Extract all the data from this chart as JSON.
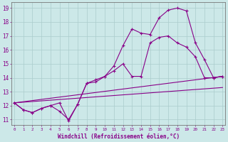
{
  "xlabel": "Windchill (Refroidissement éolien,°C)",
  "background_color": "#cce8e8",
  "grid_color": "#aacccc",
  "line_color": "#880088",
  "x_data": [
    0,
    1,
    2,
    3,
    4,
    5,
    6,
    7,
    8,
    9,
    10,
    11,
    12,
    13,
    14,
    15,
    16,
    17,
    18,
    19,
    20,
    21,
    22,
    23
  ],
  "yticks": [
    11,
    12,
    13,
    14,
    15,
    16,
    17,
    18,
    19
  ],
  "xlim": [
    -0.3,
    23.3
  ],
  "ylim": [
    10.6,
    19.4
  ],
  "line1": [
    12.2,
    11.7,
    11.5,
    11.8,
    12.0,
    12.2,
    10.9,
    12.1,
    13.6,
    13.85,
    14.1,
    14.85,
    16.3,
    17.5,
    17.2,
    17.1,
    18.3,
    18.85,
    19.0,
    18.8,
    16.5,
    15.3,
    14.0,
    14.1
  ],
  "line2": [
    12.2,
    11.7,
    11.5,
    11.8,
    12.0,
    11.6,
    11.0,
    12.1,
    13.6,
    13.7,
    14.1,
    14.5,
    15.0,
    14.1,
    14.1,
    16.5,
    16.9,
    17.0,
    16.5,
    16.2,
    15.5,
    14.0,
    14.0,
    14.1
  ],
  "line3": {
    "x": [
      0,
      23
    ],
    "y": [
      12.2,
      14.1
    ]
  },
  "line4": {
    "x": [
      0,
      23
    ],
    "y": [
      12.2,
      13.3
    ]
  }
}
